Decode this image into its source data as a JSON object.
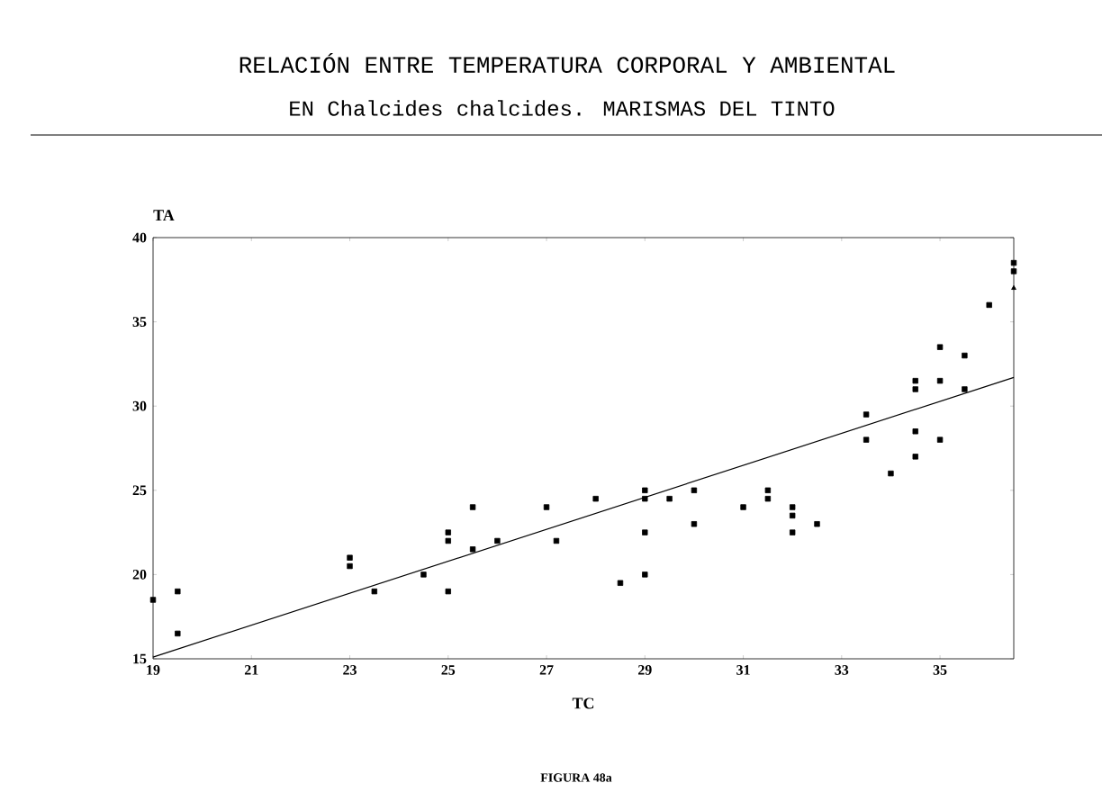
{
  "chart_data": {
    "type": "scatter",
    "title": "RELACIÓN ENTRE TEMPERATURA CORPORAL Y AMBIENTAL",
    "subtitle": "EN Chalcides chalcides. MARISMAS DEL TINTO",
    "xlabel": "TC",
    "ylabel": "TA",
    "annotations": [
      "FIGURA 48a"
    ],
    "xlim": [
      19,
      36.5
    ],
    "ylim": [
      15,
      40
    ],
    "xticks": [
      19,
      21,
      23,
      25,
      27,
      29,
      31,
      33,
      35
    ],
    "yticks": [
      15,
      20,
      25,
      30,
      35,
      40
    ],
    "series": [
      {
        "type": "scatter",
        "marker": "square",
        "color": "#000000",
        "x": [
          19,
          19.5,
          19.5,
          23,
          23,
          23.5,
          24.5,
          25,
          25,
          25,
          25.5,
          25.5,
          26,
          27,
          27.2,
          28,
          28.5,
          29,
          29,
          29,
          29,
          29.5,
          30,
          30,
          31,
          31.5,
          31.5,
          32,
          32,
          32,
          32.5,
          33.5,
          33.5,
          34,
          34.5,
          34.5,
          34.5,
          34.5,
          35,
          35,
          35,
          35.5,
          35.5,
          36,
          36.5,
          36.5
        ],
        "values": [
          18.5,
          19,
          16.5,
          21,
          20.5,
          19,
          20,
          22.5,
          22,
          19,
          24,
          21.5,
          22,
          24,
          22,
          24.5,
          19.5,
          25,
          24.5,
          22.5,
          20,
          24.5,
          25,
          23,
          24,
          25,
          24.5,
          24,
          23.5,
          22.5,
          23,
          29.5,
          28,
          26,
          31.5,
          31,
          28.5,
          27,
          33.5,
          31.5,
          28,
          33,
          31,
          36,
          38.5,
          38
        ]
      },
      {
        "type": "scatter",
        "marker": "triangle",
        "color": "#000000",
        "x": [
          36.5
        ],
        "values": [
          37
        ]
      },
      {
        "type": "line",
        "marker": "none",
        "color": "#000000",
        "x": [
          19,
          36.5
        ],
        "values": [
          15.1,
          31.7
        ]
      }
    ]
  }
}
